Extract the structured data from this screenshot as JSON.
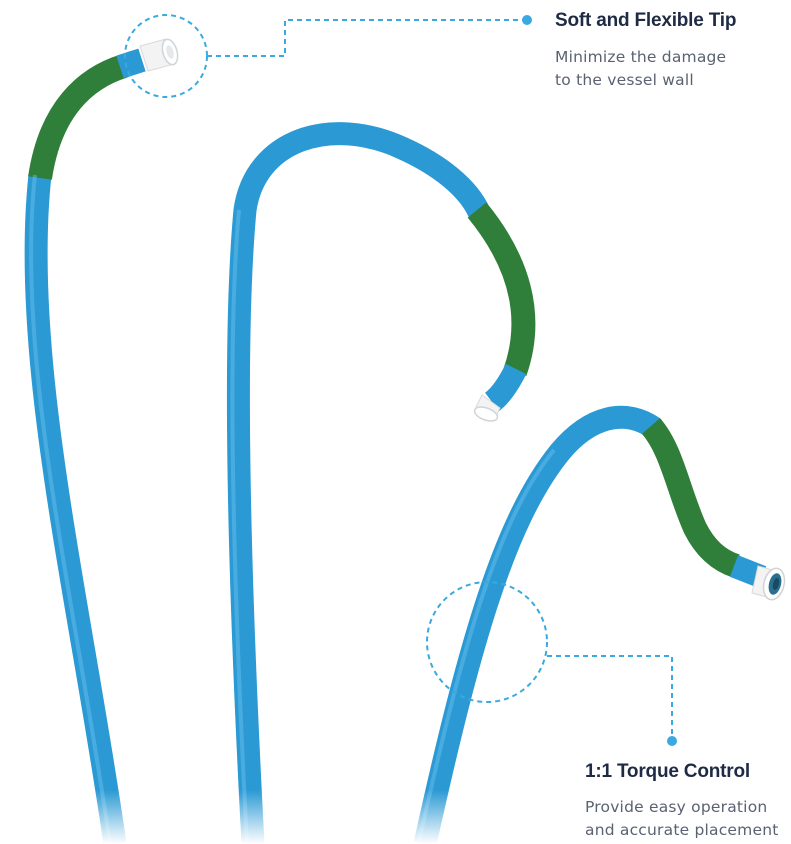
{
  "colors": {
    "catheter_blue": "#2b9ad4",
    "coating_green": "#2f7f3a",
    "tip_white": "#f3f3f3",
    "callout_line": "#39a9e0",
    "title_text": "#1f2a44",
    "body_text": "#5a6272"
  },
  "callouts": {
    "tip": {
      "title": "Soft and Flexible Tip",
      "lines": [
        "Minimize the damage",
        "to the vessel wall"
      ]
    },
    "torque": {
      "title": "1:1 Torque Control",
      "lines": [
        "Provide easy operation",
        "and accurate placement"
      ]
    }
  }
}
